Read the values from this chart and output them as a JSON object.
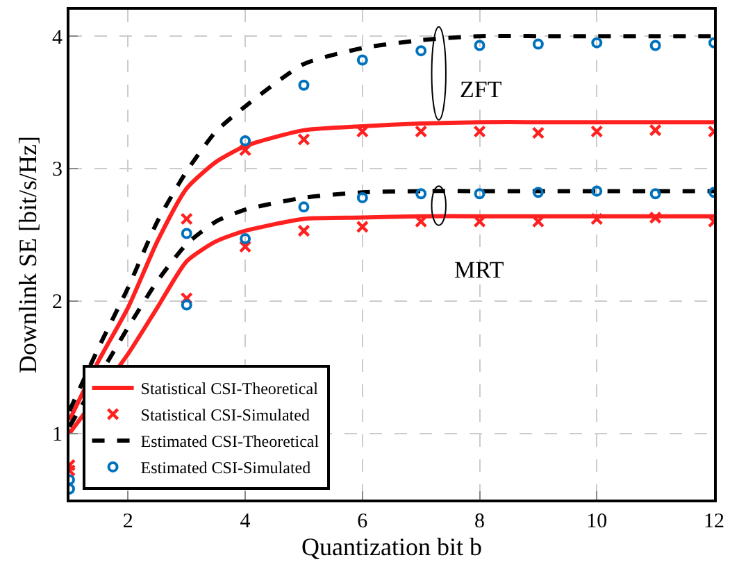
{
  "chart_data": {
    "type": "line",
    "xlabel": "Quantization bit b",
    "ylabel": "Downlink SE [bit/s/Hz]",
    "xlim": [
      1,
      12
    ],
    "xticks": [
      2,
      4,
      6,
      8,
      10,
      12
    ],
    "ylim": [
      0.5,
      4.2
    ],
    "yticks": [
      1,
      2,
      3,
      4
    ],
    "grid": true,
    "legend": "bottom left",
    "series": [
      {
        "name": "Statistical CSI-Theoretical",
        "line_style": "solid",
        "marker": "none",
        "color": "#ff2020",
        "x": [
          1,
          1.5,
          2,
          2.5,
          3,
          3.5,
          4,
          5,
          6,
          7,
          8,
          9,
          10,
          11,
          12
        ],
        "values": [
          1.1,
          1.55,
          1.95,
          2.45,
          2.85,
          3.05,
          3.17,
          3.29,
          3.32,
          3.34,
          3.35,
          3.35,
          3.35,
          3.35,
          3.35
        ]
      },
      {
        "name": "Statistical CSI-Simulated",
        "type": "scatter",
        "marker": "cross",
        "color": "#ff2020",
        "x": [
          1,
          3,
          4,
          5,
          6,
          7,
          8,
          9,
          10,
          11,
          12
        ],
        "values": [
          0.76,
          2.62,
          3.14,
          3.22,
          3.28,
          3.28,
          3.28,
          3.27,
          3.28,
          3.29,
          3.28
        ]
      },
      {
        "name": "Estimated CSI-Theoretical",
        "line_style": "dashed",
        "marker": "none",
        "color": "#000000",
        "x": [
          1,
          1.5,
          2,
          2.5,
          3,
          3.5,
          4,
          5,
          6,
          7,
          8,
          9,
          10,
          11,
          12
        ],
        "values": [
          1.17,
          1.65,
          2.1,
          2.6,
          2.98,
          3.28,
          3.47,
          3.79,
          3.91,
          3.97,
          4.0,
          4.0,
          4.0,
          4.0,
          4.0
        ]
      },
      {
        "name": "Estimated CSI-Simulated",
        "type": "scatter",
        "marker": "circle",
        "color": "#0072bd",
        "x": [
          1,
          3,
          4,
          5,
          6,
          7,
          8,
          9,
          10,
          11,
          12
        ],
        "values": [
          0.65,
          2.51,
          3.21,
          3.63,
          3.82,
          3.89,
          3.93,
          3.94,
          3.95,
          3.93,
          3.95
        ]
      },
      {
        "line_style": "solid",
        "marker": "none",
        "color": "#ff2020",
        "x": [
          1,
          1.5,
          2,
          2.5,
          3,
          3.5,
          4,
          5,
          6,
          7,
          8,
          9,
          10,
          11,
          12
        ],
        "values": [
          1.0,
          null,
          1.6,
          1.95,
          2.3,
          2.45,
          2.53,
          2.62,
          2.63,
          2.64,
          2.64,
          2.64,
          2.64,
          2.64,
          2.64
        ]
      },
      {
        "type": "scatter",
        "marker": "cross",
        "color": "#ff2020",
        "x": [
          1,
          3,
          4,
          5,
          6,
          7,
          8,
          9,
          10,
          11,
          12
        ],
        "values": [
          0.72,
          2.02,
          2.41,
          2.53,
          2.56,
          2.6,
          2.6,
          2.6,
          2.62,
          2.63,
          2.6
        ]
      },
      {
        "line_style": "dashed",
        "marker": "none",
        "color": "#000000",
        "x": [
          1,
          1.5,
          2,
          2.5,
          3,
          3.5,
          4,
          5,
          6,
          7,
          8,
          9,
          10,
          11,
          12
        ],
        "values": [
          1.05,
          null,
          1.8,
          2.15,
          2.43,
          2.6,
          2.69,
          2.78,
          2.82,
          2.83,
          2.83,
          2.83,
          2.83,
          2.83,
          2.83
        ]
      },
      {
        "type": "scatter",
        "marker": "circle",
        "color": "#0072bd",
        "x": [
          1,
          3,
          4,
          5,
          6,
          7,
          8,
          9,
          10,
          11,
          12
        ],
        "values": [
          0.58,
          1.97,
          2.47,
          2.71,
          2.78,
          2.81,
          2.81,
          2.82,
          2.83,
          2.81,
          2.82
        ]
      }
    ],
    "annotations": [
      "ZFT",
      "MRT"
    ]
  }
}
